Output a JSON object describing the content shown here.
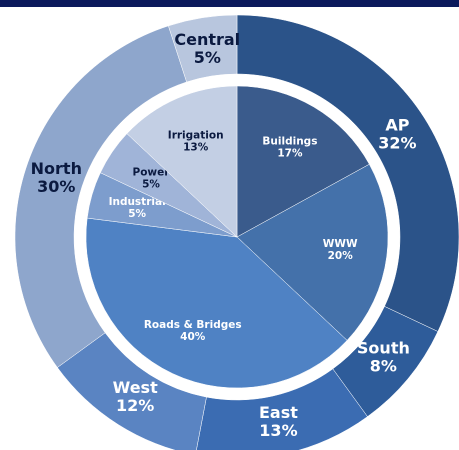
{
  "chart_data": [
    {
      "type": "donut",
      "categories": [
        "AP",
        "South",
        "East",
        "West",
        "North",
        "Central"
      ],
      "values": [
        32,
        8,
        13,
        12,
        30,
        5
      ],
      "value_labels": [
        "32%",
        "8%",
        "13%",
        "12%",
        "30%",
        "5%"
      ],
      "colors": [
        "#2b5389",
        "#2e5c9a",
        "#3b6cb2",
        "#5a84c2",
        "#8ea6cc",
        "#b8c6de"
      ],
      "label_colors": [
        "#ffffff",
        "#ffffff",
        "#ffffff",
        "#ffffff",
        "#0b1a40",
        "#0b1a40"
      ]
    },
    {
      "type": "pie",
      "categories": [
        "Buildings",
        "WWW",
        "Roads & Bridges",
        "Industrial",
        "Power",
        "Irrigation"
      ],
      "values": [
        17,
        20,
        40,
        5,
        5,
        13
      ],
      "value_labels": [
        "17%",
        "20%",
        "40%",
        "5%",
        "5%",
        "13%"
      ],
      "colors": [
        "#3a5b8c",
        "#4471aa",
        "#4f82c4",
        "#7d9dcd",
        "#a0b4d8",
        "#c3cfe4"
      ],
      "label_colors": [
        "#ffffff",
        "#ffffff",
        "#ffffff",
        "#ffffff",
        "#0b1a40",
        "#0b1a40"
      ]
    }
  ]
}
